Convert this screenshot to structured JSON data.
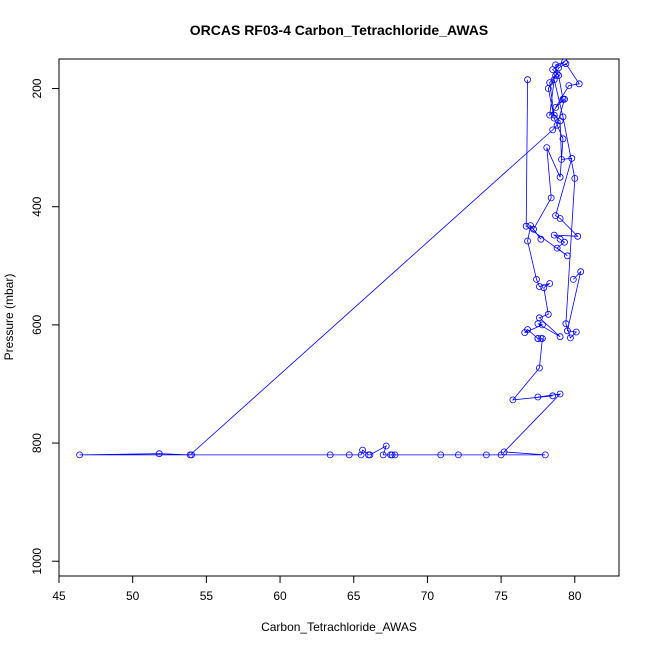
{
  "chart_data": {
    "type": "scatter",
    "title": "ORCAS RF03-4 Carbon_Tetrachloride_AWAS",
    "xlabel": "Carbon_Tetrachloride_AWAS",
    "ylabel": "Pressure (mbar)",
    "xlim": [
      45,
      83
    ],
    "ylim": [
      1025,
      150
    ],
    "y_reversed": true,
    "x_ticks": [
      45,
      50,
      55,
      60,
      65,
      70,
      75,
      80
    ],
    "y_ticks": [
      200,
      400,
      600,
      800,
      1000
    ],
    "grid": false,
    "legend": "none",
    "color": "#0000ff",
    "marker": "open-circle",
    "connect_points": true,
    "series": [
      {
        "x": [
          79.9,
          80.4,
          79.5,
          80.1,
          79.7,
          79.4,
          80.0,
          79.2,
          78.6,
          78.3,
          79.2,
          78.9,
          78.5,
          79.3,
          78.7,
          78.8,
          78.2,
          78.6,
          79.2,
          79.0,
          78.1,
          78.4,
          77.2,
          77.7,
          77.0,
          76.8,
          77.4,
          77.6,
          78.3,
          77.9,
          78.2,
          77.6,
          79.0,
          77.5,
          77.8,
          76.6,
          76.8,
          77.5,
          77.5,
          77.7,
          77.8,
          77.6,
          75.8,
          78.5,
          77.5,
          79.0,
          75.2,
          78.0,
          75.0,
          74.0,
          72.1,
          70.9,
          67.8,
          67.6,
          67.5,
          67.0,
          67.2,
          66.1,
          66.0,
          65.6,
          65.5,
          64.7,
          63.4,
          54.0,
          46.4,
          51.8,
          53.9,
          78.5,
          78.8,
          79.3,
          78.7,
          79.6,
          80.3,
          79.4,
          78.9,
          78.7,
          78.3,
          78.6,
          79.0,
          79.1,
          79.8,
          78.7,
          79.0,
          80.2,
          78.6,
          79.0,
          79.3,
          78.8,
          79.5,
          76.7,
          76.8
        ],
        "y": [
          523,
          510,
          610,
          612,
          622,
          598,
          352,
          248,
          185,
          245,
          218,
          178,
          168,
          155,
          160,
          175,
          200,
          250,
          285,
          350,
          300,
          385,
          438,
          455,
          432,
          458,
          523,
          535,
          530,
          537,
          582,
          588,
          620,
          598,
          600,
          613,
          608,
          623,
          623,
          623,
          623,
          673,
          727,
          720,
          722,
          717,
          815,
          820,
          820,
          820,
          820,
          820,
          820,
          820,
          820,
          820,
          805,
          820,
          820,
          812,
          820,
          820,
          820,
          820,
          820,
          818,
          820,
          270,
          262,
          218,
          232,
          195,
          192,
          158,
          165,
          178,
          190,
          245,
          255,
          320,
          318,
          415,
          420,
          450,
          448,
          455,
          460,
          470,
          483,
          433,
          185
        ]
      }
    ]
  }
}
